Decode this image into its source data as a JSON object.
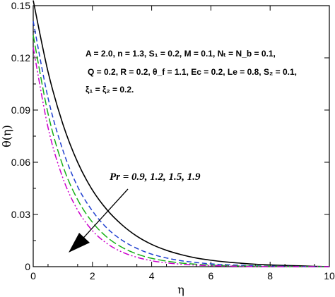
{
  "chart_data": {
    "type": "line",
    "xlabel": "η",
    "ylabel": "θ(η)",
    "xlim": [
      0,
      10
    ],
    "ylim": [
      0,
      0.15
    ],
    "x_ticks": [
      0,
      2,
      4,
      6,
      8,
      10
    ],
    "y_ticks": [
      0,
      0.03,
      0.06,
      0.09,
      0.12,
      0.15
    ],
    "x_tick_labels": [
      "0",
      "2",
      "4",
      "6",
      "8",
      "10"
    ],
    "y_tick_labels": [
      "0",
      "0.03",
      "0.06",
      "0.09",
      "0.12",
      "0.15"
    ],
    "grid": false,
    "annotations": {
      "params_line1": "A = 2.0,  n = 1.3, S₁ = 0.2, M = 0.1, Nₜ = N_b = 0.1,",
      "params_line2": "Q = 0.2, R = 0.2, θ_f = 1.1, Ec = 0.2, Le = 0.8, S₂ = 0.1,",
      "params_line3": "ξ₁ = ξ₂ = 0.2.",
      "pr_label": "Pr = 0.9, 1.2, 1.5, 1.9"
    },
    "x": [
      0,
      0.5,
      1,
      1.5,
      2,
      2.5,
      3,
      3.5,
      4,
      4.5,
      5,
      5.5,
      6,
      6.5,
      7,
      7.5,
      8,
      8.5,
      9,
      9.5,
      10
    ],
    "series": [
      {
        "color": "#000000",
        "dash": "solid",
        "values": [
          0.153,
          0.112,
          0.082,
          0.06,
          0.044,
          0.0325,
          0.024,
          0.0175,
          0.0128,
          0.0094,
          0.0069,
          0.005,
          0.0037,
          0.0027,
          0.002,
          0.0014,
          0.001,
          0.0007,
          0.0005,
          0.0002,
          0.0
        ]
      },
      {
        "color": "#1f3fd0",
        "dash": "dashed",
        "values": [
          0.141,
          0.097,
          0.067,
          0.046,
          0.032,
          0.022,
          0.0152,
          0.0105,
          0.0072,
          0.005,
          0.0034,
          0.0024,
          0.0016,
          0.0011,
          0.0008,
          0.0005,
          0.0003,
          0.0002,
          0.0001,
          0.0,
          0.0
        ]
      },
      {
        "color": "#17b017",
        "dash": "longdash",
        "values": [
          0.133,
          0.088,
          0.058,
          0.0385,
          0.0255,
          0.0168,
          0.0111,
          0.0073,
          0.0048,
          0.0032,
          0.0021,
          0.0014,
          0.0009,
          0.0006,
          0.0004,
          0.0003,
          0.0002,
          0.0001,
          0.0,
          0.0,
          0.0
        ]
      },
      {
        "color": "#cc00cc",
        "dash": "dashdotdot",
        "values": [
          0.126,
          0.08,
          0.051,
          0.0325,
          0.0207,
          0.0132,
          0.0084,
          0.0054,
          0.0034,
          0.0022,
          0.0014,
          0.0009,
          0.0006,
          0.0004,
          0.0002,
          0.0001,
          0.0,
          0.0,
          0.0,
          0.0,
          0.0
        ]
      }
    ]
  }
}
